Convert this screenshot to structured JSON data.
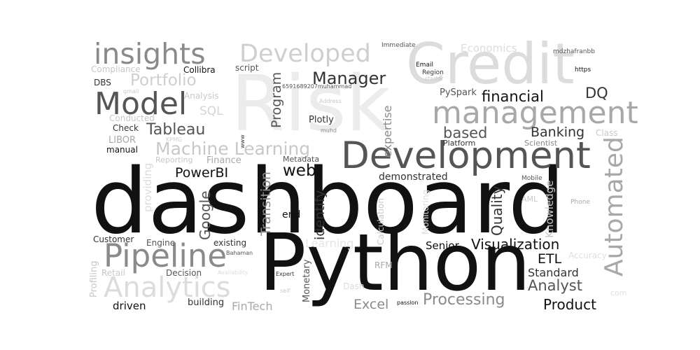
{
  "word_cloud": {
    "words": [
      {
        "text": "Risk",
        "color": "#ececec"
      },
      {
        "text": "Credit",
        "color": "#dcdcdc"
      },
      {
        "text": "dashboard",
        "color": "#111111"
      },
      {
        "text": "Python",
        "color": "#111111"
      },
      {
        "text": "Development",
        "color": "#555555"
      },
      {
        "text": "management",
        "color": "#a8a8a8"
      },
      {
        "text": "insights",
        "color": "#8a8a8a"
      },
      {
        "text": "Developed",
        "color": "#cfcfcf"
      },
      {
        "text": "Model",
        "color": "#555555"
      },
      {
        "text": "Pipeline",
        "color": "#8a8a8a"
      },
      {
        "text": "Analytics",
        "color": "#dcdcdc"
      },
      {
        "text": "Automated",
        "color": "#a8a8a8"
      },
      {
        "text": "Portfolio",
        "color": "#cfcfcf"
      },
      {
        "text": "Machine Learning",
        "color": "#c8c8c8"
      },
      {
        "text": "Tableau",
        "color": "#555555"
      },
      {
        "text": "Manager",
        "color": "#333333"
      },
      {
        "text": "financial",
        "color": "#111111"
      },
      {
        "text": "based",
        "color": "#555555"
      },
      {
        "text": "Banking",
        "color": "#333333"
      },
      {
        "text": "DQ",
        "color": "#333333"
      },
      {
        "text": "PowerBI",
        "color": "#111111"
      },
      {
        "text": "web",
        "color": "#111111"
      },
      {
        "text": "Visualization",
        "color": "#111111"
      },
      {
        "text": "Processing",
        "color": "#8a8a8a"
      },
      {
        "text": "Analyst",
        "color": "#555555"
      },
      {
        "text": "Product",
        "color": "#111111"
      },
      {
        "text": "Excel",
        "color": "#8a8a8a"
      },
      {
        "text": "ETL",
        "color": "#111111"
      },
      {
        "text": "Standard",
        "color": "#333333"
      },
      {
        "text": "Senior",
        "color": "#111111"
      },
      {
        "text": "Quality",
        "color": "#333333"
      },
      {
        "text": "Program",
        "color": "#555555"
      },
      {
        "text": "Transition",
        "color": "#8a8a8a"
      },
      {
        "text": "Google",
        "color": "#555555"
      },
      {
        "text": "identify",
        "color": "#333333"
      },
      {
        "text": "expertise",
        "color": "#8a8a8a"
      },
      {
        "text": "Knowledge",
        "color": "#c8c8c8"
      },
      {
        "text": "Monetary",
        "color": "#555555"
      },
      {
        "text": "providing",
        "color": "#dcdcdc"
      },
      {
        "text": "Profiling",
        "color": "#c8c8c8"
      },
      {
        "text": "Calculation",
        "color": "#c8c8c8"
      },
      {
        "text": "Monitoring",
        "color": "#dcdcdc"
      },
      {
        "text": "driven",
        "color": "#111111"
      },
      {
        "text": "FinTech",
        "color": "#a8a8a8"
      },
      {
        "text": "building",
        "color": "#333333"
      },
      {
        "text": "Learning",
        "color": "#e5e5e5"
      },
      {
        "text": "Economics",
        "color": "#dcdcdc"
      },
      {
        "text": "SQL",
        "color": "#d6d6d6"
      },
      {
        "text": "Finance",
        "color": "#a8a8a8"
      },
      {
        "text": "Plotly",
        "color": "#333333"
      },
      {
        "text": "PySpark",
        "color": "#555555"
      },
      {
        "text": "Collibra",
        "color": "#111111"
      },
      {
        "text": "script",
        "color": "#555555"
      },
      {
        "text": "Compliance",
        "color": "#c8c8c8"
      },
      {
        "text": "DBS",
        "color": "#333333"
      },
      {
        "text": "Analysis",
        "color": "#c8c8c8"
      },
      {
        "text": "Conducted",
        "color": "#c8c8c8"
      },
      {
        "text": "Check",
        "color": "#333333"
      },
      {
        "text": "LIBOR",
        "color": "#a8a8a8"
      },
      {
        "text": "manual",
        "color": "#111111"
      },
      {
        "text": "Reporting",
        "color": "#c8c8c8"
      },
      {
        "text": "Metadata",
        "color": "#555555"
      },
      {
        "text": "demonstrated",
        "color": "#333333"
      },
      {
        "text": "end",
        "color": "#111111"
      },
      {
        "text": "Customer",
        "color": "#333333"
      },
      {
        "text": "Engine",
        "color": "#555555"
      },
      {
        "text": "existing",
        "color": "#333333"
      },
      {
        "text": "Retail",
        "color": "#c8c8c8"
      },
      {
        "text": "Decision",
        "color": "#555555"
      },
      {
        "text": "Dash",
        "color": "#dcdcdc"
      },
      {
        "text": "RFM",
        "color": "#a8a8a8"
      },
      {
        "text": "Platform",
        "color": "#333333"
      },
      {
        "text": "Scientist",
        "color": "#8a8a8a"
      },
      {
        "text": "Class",
        "color": "#c8c8c8"
      },
      {
        "text": "Accuracy",
        "color": "#e0e0e0"
      },
      {
        "text": "AML",
        "color": "#c8c8c8"
      },
      {
        "text": "Mobile",
        "color": "#555555"
      },
      {
        "text": "Phone",
        "color": "#a8a8a8"
      },
      {
        "text": "Immediate",
        "color": "#555555"
      },
      {
        "text": "mdzhafranbb",
        "color": "#555555"
      },
      {
        "text": "https",
        "color": "#111111"
      },
      {
        "text": "Email",
        "color": "#111111"
      },
      {
        "text": "Region",
        "color": "#333333"
      },
      {
        "text": "starter",
        "color": "#c8c8c8"
      },
      {
        "text": "6591689207muhammad",
        "color": "#555555"
      },
      {
        "text": "gmail",
        "color": "#c8c8c8"
      },
      {
        "text": "Address",
        "color": "#c8c8c8"
      },
      {
        "text": "muhd",
        "color": "#8a8a8a"
      },
      {
        "text": "KPMG",
        "color": "#d0d0d0"
      },
      {
        "text": "www",
        "color": "#333333"
      },
      {
        "text": "Bahaman",
        "color": "#555555"
      },
      {
        "text": "Availability",
        "color": "#dcdcdc"
      },
      {
        "text": "Expert",
        "color": "#333333"
      },
      {
        "text": "self",
        "color": "#c8c8c8"
      },
      {
        "text": "passion",
        "color": "#111111"
      },
      {
        "text": "com",
        "color": "#e0e0e0"
      }
    ]
  }
}
